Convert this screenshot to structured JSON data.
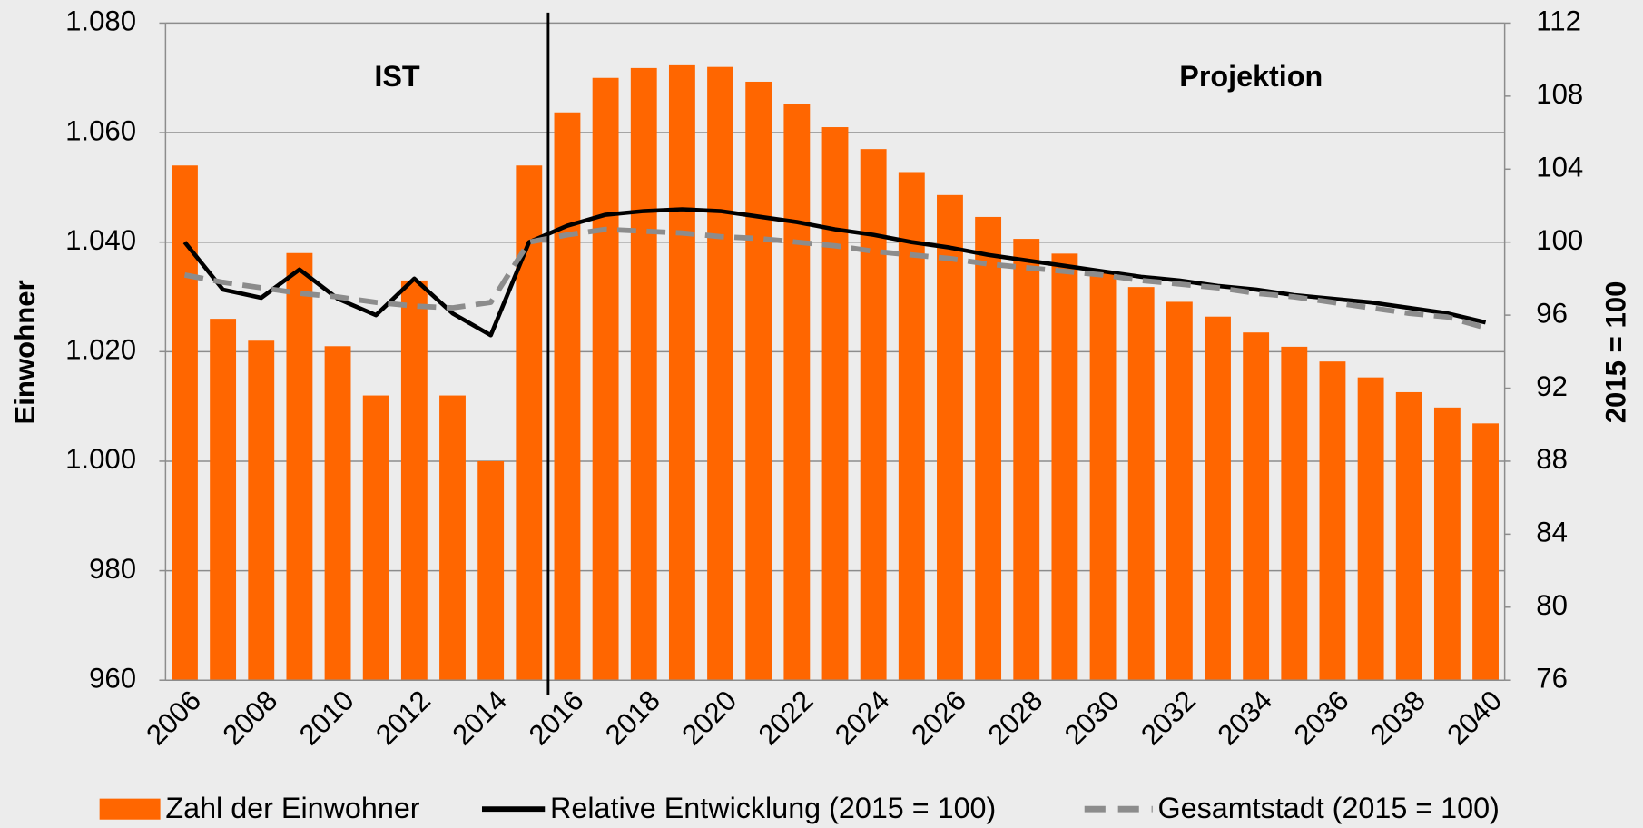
{
  "chart_data": {
    "type": "bar",
    "categories": [
      "2006",
      null,
      "2008",
      null,
      "2010",
      null,
      "2012",
      null,
      "2014",
      null,
      "2016",
      null,
      "2018",
      null,
      "2020",
      null,
      "2022",
      null,
      "2024",
      null,
      "2026",
      null,
      "2028",
      null,
      "2030",
      null,
      "2032",
      null,
      "2034",
      null,
      "2036",
      null,
      "2038",
      null,
      "2040"
    ],
    "series": [
      {
        "name": "Zahl der Einwohner",
        "type": "bar",
        "color": "#ff6600",
        "values": [
          1054,
          1026,
          1022,
          1038,
          1021,
          1012,
          1033,
          1012,
          1000,
          1054,
          1063.7,
          1070,
          1071.8,
          1072.3,
          1072,
          1069.3,
          1065.3,
          1061,
          1057,
          1052.8,
          1048.6,
          1044.6,
          1040.6,
          1037.9,
          1034.8,
          1031.8,
          1029.1,
          1026.4,
          1023.5,
          1020.9,
          1018.2,
          1015.3,
          1012.6,
          1009.8,
          1006.9
        ]
      },
      {
        "name": "Relative Entwicklung (2015 = 100)",
        "type": "line",
        "axis": "y2",
        "color": "#000000",
        "values": [
          100,
          97.4,
          96.95,
          98.5,
          96.9,
          96.0,
          98.0,
          96.1,
          94.9,
          100,
          100.9,
          101.5,
          101.7,
          101.8,
          101.7,
          101.4,
          101.1,
          100.7,
          100.4,
          100,
          99.7,
          99.3,
          99.0,
          98.7,
          98.4,
          98.1,
          97.9,
          97.6,
          97.4,
          97.1,
          96.9,
          96.7,
          96.4,
          96.1,
          95.6
        ]
      },
      {
        "name": "Gesamtstadt (2015 = 100)",
        "type": "line",
        "axis": "y2",
        "color": "#8c8c8c",
        "dashed": true,
        "values": [
          98.2,
          97.8,
          97.5,
          97.2,
          97.0,
          96.7,
          96.5,
          96.4,
          96.7,
          100,
          100.4,
          100.7,
          100.6,
          100.5,
          100.3,
          100.2,
          100,
          99.8,
          99.5,
          99.3,
          99.1,
          98.8,
          98.6,
          98.4,
          98.2,
          97.9,
          97.7,
          97.5,
          97.2,
          97.0,
          96.7,
          96.4,
          96.1,
          95.9,
          95.3
        ]
      }
    ],
    "ylabel": "Einwohner",
    "y2label": "2015 = 100",
    "annotations": [
      "IST",
      "Projektion"
    ],
    "ylim": [
      960,
      1080
    ],
    "yticks": [
      960,
      980,
      {
        "value": 1000,
        "label": "1.000"
      },
      {
        "value": 1020,
        "label": "1.020"
      },
      {
        "value": 1040,
        "label": "1.040"
      },
      {
        "value": 1060,
        "label": "1.060"
      },
      {
        "value": 1080,
        "label": "1.080"
      }
    ],
    "y2lim": [
      76,
      112
    ],
    "y2ticks": [
      76,
      80,
      84,
      88,
      92,
      96,
      100,
      104,
      108,
      112
    ],
    "grid": true,
    "legend": "bottom"
  }
}
